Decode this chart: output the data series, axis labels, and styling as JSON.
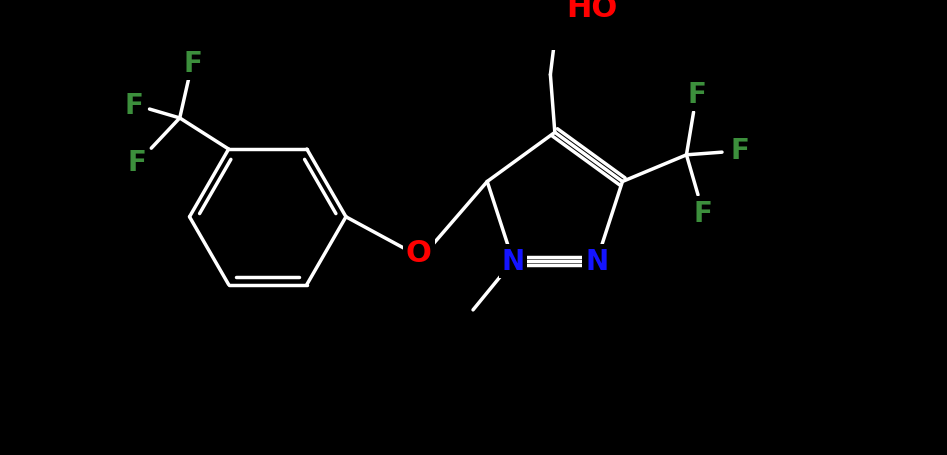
{
  "bg_color": "#000000",
  "bond_color": "#ffffff",
  "atom_colors": {
    "N": "#1414ff",
    "O": "#ff0000",
    "F": "#3c8f3c"
  },
  "line_width": 2.5,
  "figsize": [
    9.47,
    4.56
  ],
  "dpi": 100,
  "font_size": 20
}
